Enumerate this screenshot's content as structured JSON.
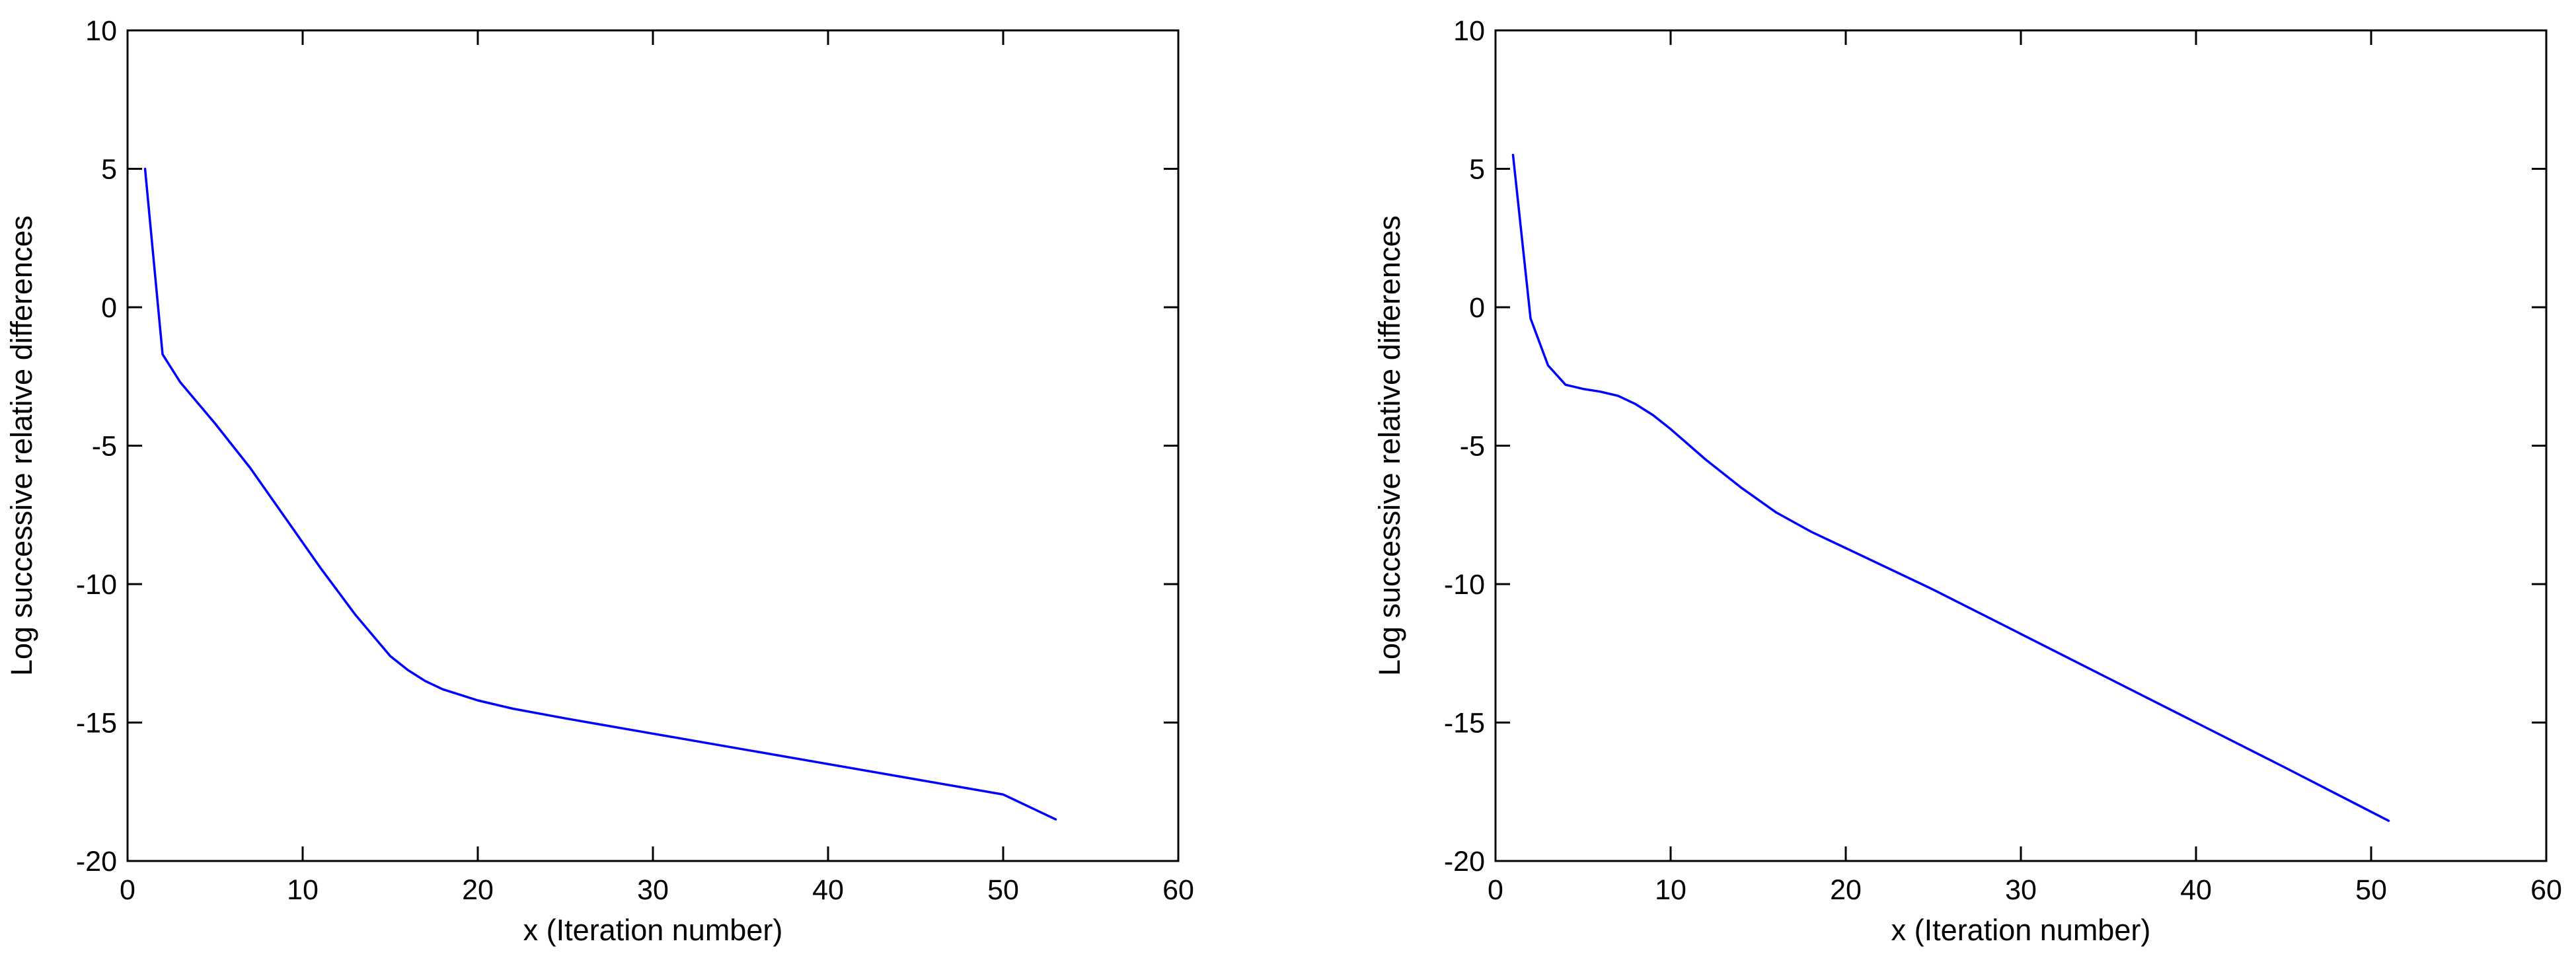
{
  "chart_data": [
    {
      "type": "line",
      "title": "",
      "xlabel": "x (Iteration number)",
      "ylabel": "Log successive relative differences",
      "xlim": [
        0,
        60
      ],
      "ylim": [
        -20,
        10
      ],
      "xticks": [
        0,
        10,
        20,
        30,
        40,
        50,
        60
      ],
      "yticks": [
        -20,
        -15,
        -10,
        -5,
        0,
        5,
        10
      ],
      "grid": false,
      "legend": "none",
      "series": [
        {
          "color": "#0000ff",
          "x": [
            1,
            2,
            3,
            5,
            7,
            9,
            11,
            13,
            15,
            16,
            17,
            18,
            19,
            20,
            22,
            25,
            30,
            35,
            40,
            45,
            50,
            53
          ],
          "y": [
            5.0,
            -1.7,
            -2.7,
            -4.2,
            -5.8,
            -7.6,
            -9.4,
            -11.1,
            -12.6,
            -13.1,
            -13.5,
            -13.8,
            -14.0,
            -14.2,
            -14.5,
            -14.85,
            -15.4,
            -15.95,
            -16.5,
            -17.05,
            -17.6,
            -18.5
          ]
        }
      ]
    },
    {
      "type": "line",
      "title": "",
      "xlabel": "x (Iteration number)",
      "ylabel": "Log successive relative differences",
      "xlim": [
        0,
        60
      ],
      "ylim": [
        -20,
        10
      ],
      "xticks": [
        0,
        10,
        20,
        30,
        40,
        50,
        60
      ],
      "yticks": [
        -20,
        -15,
        -10,
        -5,
        0,
        5,
        10
      ],
      "grid": false,
      "legend": "none",
      "series": [
        {
          "color": "#0000ff",
          "x": [
            1,
            2,
            3,
            4,
            5,
            6,
            7,
            8,
            9,
            10,
            12,
            14,
            16,
            18,
            20,
            25,
            30,
            35,
            40,
            45,
            51
          ],
          "y": [
            5.5,
            -0.4,
            -2.1,
            -2.8,
            -2.95,
            -3.05,
            -3.2,
            -3.5,
            -3.9,
            -4.4,
            -5.5,
            -6.5,
            -7.4,
            -8.1,
            -8.7,
            -10.2,
            -11.8,
            -13.4,
            -15.0,
            -16.6,
            -18.55
          ]
        }
      ]
    }
  ]
}
